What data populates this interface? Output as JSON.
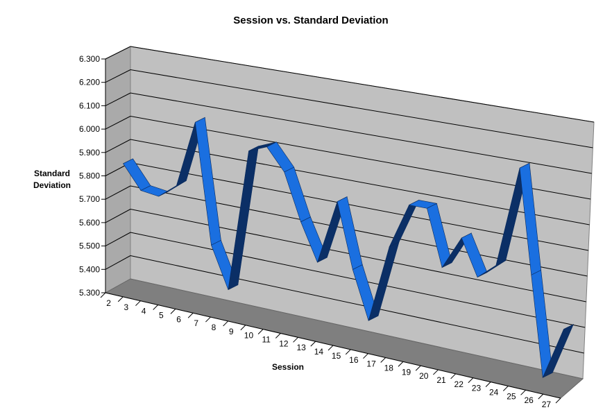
{
  "chart_data": {
    "type": "line",
    "title": "Session vs. Standard Deviation",
    "xlabel": "Session",
    "ylabel_lines": [
      "Standard",
      "Deviation"
    ],
    "ylim": [
      5.3,
      6.3
    ],
    "yticks": [
      "5.300",
      "5.400",
      "5.500",
      "5.600",
      "5.700",
      "5.800",
      "5.900",
      "6.000",
      "6.100",
      "6.200",
      "6.300"
    ],
    "categories": [
      "2",
      "3",
      "4",
      "5",
      "6",
      "7",
      "8",
      "9",
      "10",
      "11",
      "12",
      "13",
      "14",
      "15",
      "16",
      "17",
      "18",
      "19",
      "20",
      "21",
      "22",
      "23",
      "24",
      "25",
      "26",
      "27"
    ],
    "series": [
      {
        "values": [
          5.84,
          5.74,
          5.73,
          5.79,
          6.07,
          5.57,
          5.4,
          5.99,
          6.02,
          5.93,
          5.74,
          5.59,
          5.85,
          5.59,
          5.4,
          5.71,
          5.89,
          5.89,
          5.67,
          5.8,
          5.66,
          5.72,
          6.11,
          5.71,
          5.33,
          5.53
        ]
      }
    ],
    "grid": true,
    "style": "3d-ribbon",
    "colors": {
      "ribbon_face": "#1a6fe0",
      "ribbon_top": "#3d8cf5",
      "ribbon_side": "#0b2f66",
      "back_wall": "#c0c0c0",
      "side_wall": "#aaaaaa",
      "floor": "#7f7f7f",
      "gridline": "#000000"
    }
  }
}
